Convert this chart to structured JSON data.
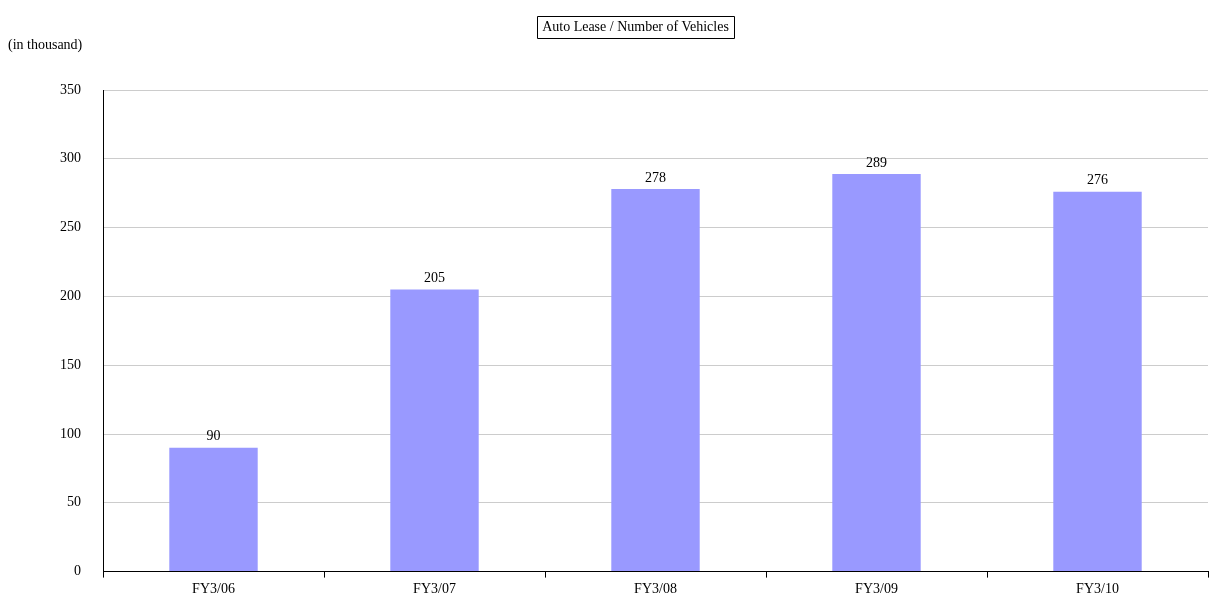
{
  "chart_data": {
    "type": "bar",
    "title": "Auto Lease / Number of Vehicles",
    "ylabel": "(in thousand)",
    "categories": [
      "FY3/06",
      "FY3/07",
      "FY3/08",
      "FY3/09",
      "FY3/10"
    ],
    "values": [
      90,
      205,
      278,
      289,
      276
    ],
    "color": "#9999ff",
    "ylim": [
      0,
      350
    ],
    "yticks": [
      0,
      50,
      100,
      150,
      200,
      250,
      300,
      350
    ],
    "grid": "y",
    "data_labels": true
  }
}
